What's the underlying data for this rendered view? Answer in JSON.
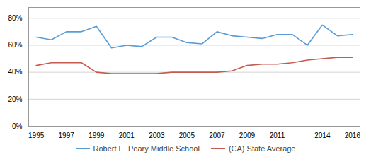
{
  "chart_data": {
    "type": "line",
    "x": [
      1995,
      1996,
      1997,
      1998,
      1999,
      2000,
      2001,
      2002,
      2003,
      2004,
      2005,
      2006,
      2007,
      2008,
      2009,
      2010,
      2011,
      2012,
      2013,
      2014,
      2015,
      2016
    ],
    "series": [
      {
        "name": "Robert E. Peary Middle School",
        "color": "#5b9bd5",
        "values": [
          0.66,
          0.64,
          0.7,
          0.7,
          0.74,
          0.58,
          0.6,
          0.59,
          0.66,
          0.66,
          0.62,
          0.61,
          0.7,
          0.67,
          0.66,
          0.65,
          0.68,
          0.68,
          0.6,
          0.75,
          0.67,
          0.68
        ]
      },
      {
        "name": "(CA) State Average",
        "color": "#c55a4e",
        "values": [
          0.45,
          0.47,
          0.47,
          0.47,
          0.4,
          0.39,
          0.39,
          0.39,
          0.39,
          0.4,
          0.4,
          0.4,
          0.4,
          0.41,
          0.45,
          0.46,
          0.46,
          0.47,
          0.49,
          0.5,
          0.51,
          0.51
        ]
      }
    ],
    "xlim": [
      1994.5,
      2016.5
    ],
    "xticks": [
      1995,
      1997,
      1999,
      2001,
      2003,
      2005,
      2007,
      2009,
      2011,
      2014,
      2016
    ],
    "ylim": [
      0.0,
      0.88
    ],
    "yticks": [
      {
        "value": 0.0,
        "label": "0%"
      },
      {
        "value": 0.2,
        "label": "20%"
      },
      {
        "value": 0.4,
        "label": "40%"
      },
      {
        "value": 0.6,
        "label": "60%"
      },
      {
        "value": 0.8,
        "label": "80%"
      }
    ],
    "grid": true,
    "legend": "bottom"
  }
}
